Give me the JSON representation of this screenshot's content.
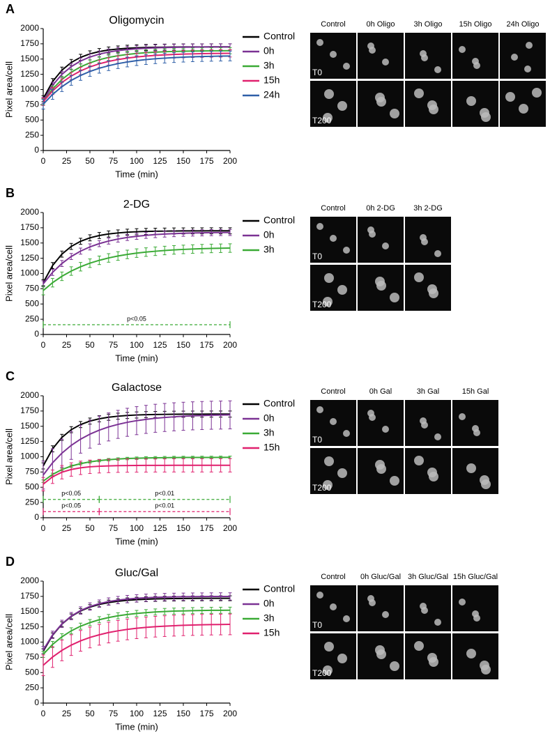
{
  "chart_data": [
    {
      "panel": "A",
      "type": "line",
      "title": "Oligomycin",
      "x_label": "Time (min)",
      "y_label": "Pixel area/cell",
      "x": [
        0,
        10,
        20,
        30,
        40,
        50,
        60,
        70,
        80,
        90,
        100,
        110,
        120,
        130,
        140,
        150,
        160,
        170,
        180,
        190,
        200
      ],
      "series": [
        {
          "name": "Control",
          "color": "#000000",
          "error": 50,
          "values": [
            850,
            1130,
            1318,
            1444,
            1528,
            1585,
            1623,
            1648,
            1665,
            1677,
            1685,
            1690,
            1693,
            1695,
            1697,
            1698,
            1699,
            1699,
            1700,
            1700,
            1700
          ]
        },
        {
          "name": "0h",
          "color": "#7b3294",
          "error": 50,
          "values": [
            820,
            1069,
            1249,
            1376,
            1468,
            1534,
            1581,
            1615,
            1639,
            1656,
            1668,
            1677,
            1684,
            1689,
            1692,
            1694,
            1696,
            1697,
            1698,
            1699,
            1699
          ]
        },
        {
          "name": "3h",
          "color": "#3aaa35",
          "error": 50,
          "values": [
            800,
            1009,
            1165,
            1284,
            1372,
            1438,
            1489,
            1527,
            1554,
            1576,
            1592,
            1604,
            1613,
            1620,
            1625,
            1628,
            1631,
            1633,
            1635,
            1636,
            1637
          ]
        },
        {
          "name": "15h",
          "color": "#e0206e",
          "error": 60,
          "values": [
            800,
            977,
            1115,
            1222,
            1306,
            1371,
            1422,
            1461,
            1492,
            1516,
            1534,
            1549,
            1560,
            1569,
            1576,
            1581,
            1585,
            1588,
            1591,
            1593,
            1594
          ]
        },
        {
          "name": "24h",
          "color": "#2e5fa8",
          "error": 80,
          "values": [
            760,
            919,
            1047,
            1150,
            1231,
            1297,
            1349,
            1391,
            1425,
            1452,
            1474,
            1491,
            1505,
            1515,
            1524,
            1531,
            1537,
            1541,
            1545,
            1548,
            1550
          ]
        }
      ],
      "xlim": [
        0,
        200
      ],
      "ylim": [
        0,
        2000
      ],
      "xticks": [
        0,
        25,
        50,
        75,
        100,
        125,
        150,
        175,
        200
      ],
      "yticks": [
        0,
        250,
        500,
        750,
        1000,
        1250,
        1500,
        1750,
        2000
      ],
      "annotations": [],
      "images": {
        "columns": [
          "Control",
          "0h Oligo",
          "3h Oligo",
          "15h Oligo",
          "24h Oligo"
        ],
        "rows": [
          "T0",
          "T200"
        ]
      }
    },
    {
      "panel": "B",
      "type": "line",
      "title": "2-DG",
      "x_label": "Time (min)",
      "y_label": "Pixel area/cell",
      "x": [
        0,
        10,
        20,
        30,
        40,
        50,
        60,
        70,
        80,
        90,
        100,
        110,
        120,
        130,
        140,
        150,
        160,
        170,
        180,
        190,
        200
      ],
      "series": [
        {
          "name": "Control",
          "color": "#000000",
          "error": 50,
          "values": [
            850,
            1130,
            1318,
            1444,
            1528,
            1585,
            1623,
            1648,
            1665,
            1677,
            1685,
            1690,
            1693,
            1695,
            1697,
            1698,
            1699,
            1699,
            1700,
            1700,
            1700
          ]
        },
        {
          "name": "0h",
          "color": "#7b3294",
          "error": 50,
          "values": [
            830,
            1018,
            1164,
            1279,
            1367,
            1436,
            1490,
            1532,
            1565,
            1591,
            1610,
            1626,
            1638,
            1647,
            1654,
            1660,
            1664,
            1667,
            1670,
            1672,
            1673
          ]
        },
        {
          "name": "3h",
          "color": "#3aaa35",
          "error": 70,
          "values": [
            720,
            849,
            954,
            1040,
            1111,
            1169,
            1216,
            1255,
            1287,
            1313,
            1334,
            1351,
            1365,
            1377,
            1387,
            1395,
            1401,
            1407,
            1411,
            1414,
            1417
          ]
        }
      ],
      "xlim": [
        0,
        200
      ],
      "ylim": [
        0,
        2000
      ],
      "xticks": [
        0,
        25,
        50,
        75,
        100,
        125,
        150,
        175,
        200
      ],
      "yticks": [
        0,
        250,
        500,
        750,
        1000,
        1250,
        1500,
        1750,
        2000
      ],
      "annotations": [
        {
          "y": 160,
          "color": "#3aaa35",
          "segments": [
            {
              "x": [
                0,
                200
              ],
              "label": "p<0.05"
            }
          ]
        }
      ],
      "images": {
        "columns": [
          "Control",
          "0h 2-DG",
          "3h 2-DG"
        ],
        "rows": [
          "T0",
          "T200"
        ]
      }
    },
    {
      "panel": "C",
      "type": "line",
      "title": "Galactose",
      "x_label": "Time (min)",
      "y_label": "Pixel area/cell",
      "x": [
        0,
        10,
        20,
        30,
        40,
        50,
        60,
        70,
        80,
        90,
        100,
        110,
        120,
        130,
        140,
        150,
        160,
        170,
        180,
        190,
        200
      ],
      "series": [
        {
          "name": "Control",
          "color": "#000000",
          "error": 50,
          "values": [
            850,
            1130,
            1318,
            1444,
            1528,
            1585,
            1623,
            1648,
            1665,
            1677,
            1685,
            1690,
            1693,
            1695,
            1697,
            1698,
            1699,
            1699,
            1700,
            1700,
            1700
          ]
        },
        {
          "name": "0h",
          "color": "#7b3294",
          "error": 230,
          "values": [
            700,
            901,
            1059,
            1187,
            1289,
            1371,
            1436,
            1489,
            1531,
            1565,
            1592,
            1613,
            1631,
            1644,
            1655,
            1664,
            1671,
            1676,
            1681,
            1684,
            1687
          ]
        },
        {
          "name": "3h",
          "color": "#3aaa35",
          "error": 20,
          "values": [
            600,
            710,
            790,
            847,
            887,
            916,
            937,
            952,
            963,
            971,
            976,
            980,
            983,
            985,
            987,
            988,
            988,
            989,
            989,
            990,
            990
          ]
        },
        {
          "name": "15h",
          "color": "#e0206e",
          "error": 110,
          "values": [
            550,
            672,
            746,
            791,
            818,
            835,
            844,
            850,
            854,
            856,
            857,
            858,
            859,
            859,
            860,
            860,
            860,
            860,
            860,
            860,
            860
          ]
        }
      ],
      "xlim": [
        0,
        200
      ],
      "ylim": [
        0,
        2000
      ],
      "xticks": [
        0,
        25,
        50,
        75,
        100,
        125,
        150,
        175,
        200
      ],
      "yticks": [
        0,
        250,
        500,
        750,
        1000,
        1250,
        1500,
        1750,
        2000
      ],
      "annotations": [
        {
          "y": 300,
          "color": "#3aaa35",
          "segments": [
            {
              "x": [
                0,
                60
              ],
              "label": "p<0.05"
            },
            {
              "x": [
                60,
                200
              ],
              "label": "p<0.01"
            }
          ]
        },
        {
          "y": 100,
          "color": "#e0206e",
          "segments": [
            {
              "x": [
                0,
                60
              ],
              "label": "p<0.05"
            },
            {
              "x": [
                60,
                200
              ],
              "label": "p<0.01"
            }
          ]
        }
      ],
      "images": {
        "columns": [
          "Control",
          "0h Gal",
          "3h Gal",
          "15h Gal"
        ],
        "rows": [
          "T0",
          "T200"
        ]
      }
    },
    {
      "panel": "D",
      "type": "line",
      "title": "Gluc/Gal",
      "x_label": "Time (min)",
      "y_label": "Pixel area/cell",
      "x": [
        0,
        10,
        20,
        30,
        40,
        50,
        60,
        70,
        80,
        90,
        100,
        110,
        120,
        130,
        140,
        150,
        160,
        170,
        180,
        190,
        200
      ],
      "series": [
        {
          "name": "Control",
          "color": "#000000",
          "error": 40,
          "values": [
            850,
            1111,
            1294,
            1422,
            1511,
            1574,
            1618,
            1649,
            1670,
            1685,
            1696,
            1703,
            1708,
            1712,
            1714,
            1716,
            1717,
            1718,
            1719,
            1719,
            1719
          ]
        },
        {
          "name": "0h",
          "color": "#7b3294",
          "error": 60,
          "values": [
            870,
            1119,
            1299,
            1426,
            1518,
            1584,
            1631,
            1665,
            1689,
            1706,
            1718,
            1727,
            1734,
            1739,
            1742,
            1744,
            1746,
            1747,
            1748,
            1749,
            1749
          ]
        },
        {
          "name": "3h",
          "color": "#3aaa35",
          "error": 50,
          "values": [
            800,
            961,
            1087,
            1185,
            1261,
            1320,
            1367,
            1403,
            1431,
            1453,
            1470,
            1483,
            1494,
            1502,
            1508,
            1512,
            1516,
            1519,
            1521,
            1522,
            1523
          ]
        },
        {
          "name": "15h",
          "color": "#e0206e",
          "error": 170,
          "values": [
            620,
            755,
            864,
            951,
            1021,
            1076,
            1120,
            1157,
            1185,
            1208,
            1227,
            1241,
            1253,
            1262,
            1269,
            1276,
            1280,
            1284,
            1287,
            1289,
            1291
          ]
        }
      ],
      "xlim": [
        0,
        200
      ],
      "ylim": [
        0,
        2000
      ],
      "xticks": [
        0,
        25,
        50,
        75,
        100,
        125,
        150,
        175,
        200
      ],
      "yticks": [
        0,
        250,
        500,
        750,
        1000,
        1250,
        1500,
        1750,
        2000
      ],
      "annotations": [],
      "images": {
        "columns": [
          "Control",
          "0h Gluc/Gal",
          "3h Gluc/Gal",
          "15h Gluc/Gal"
        ],
        "rows": [
          "T0",
          "T200"
        ]
      }
    }
  ]
}
